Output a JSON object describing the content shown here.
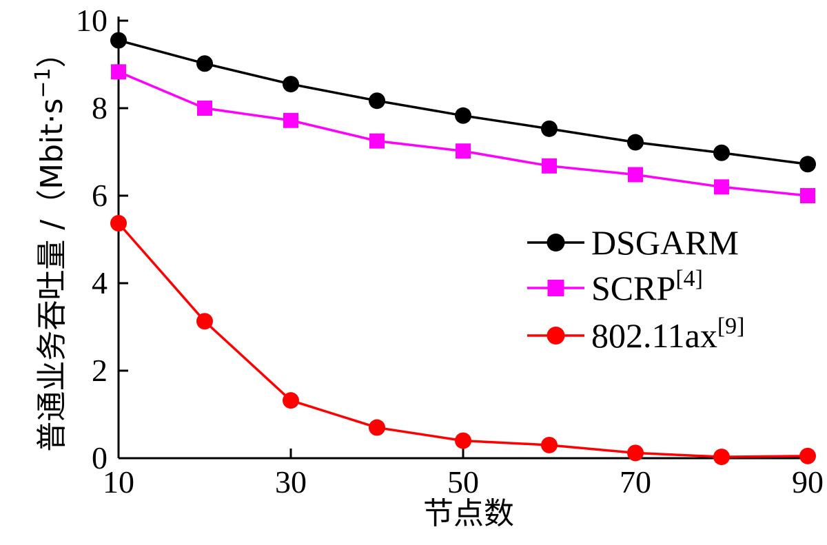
{
  "chart_data": {
    "type": "line",
    "xlabel": "节点数",
    "ylabel": "普通业务吞吐量 /（Mbit·s",
    "ylabel_sup": "−1",
    "ylabel_close": "）",
    "x": [
      10,
      20,
      30,
      40,
      50,
      60,
      70,
      80,
      90
    ],
    "xlim": [
      10,
      90
    ],
    "ylim": [
      0,
      10
    ],
    "xticks": [
      "10",
      "30",
      "50",
      "70",
      "90"
    ],
    "yticks": [
      "0",
      "2",
      "4",
      "6",
      "8",
      "10"
    ],
    "legend_position": "center-right",
    "grid": false,
    "series": [
      {
        "name": "DSGARM",
        "name_sup": "",
        "color": "#000000",
        "marker": "circle",
        "values": [
          9.55,
          9.02,
          8.55,
          8.17,
          7.83,
          7.53,
          7.22,
          6.98,
          6.72
        ]
      },
      {
        "name": "SCRP",
        "name_sup": "[4]",
        "color": "#ff00ff",
        "marker": "square",
        "values": [
          8.83,
          8.0,
          7.72,
          7.25,
          7.02,
          6.68,
          6.48,
          6.2,
          6.0
        ]
      },
      {
        "name": "802.11ax",
        "name_sup": "[9]",
        "color": "#ff0000",
        "marker": "circle",
        "values": [
          5.37,
          3.13,
          1.32,
          0.7,
          0.4,
          0.3,
          0.12,
          0.03,
          0.05
        ]
      }
    ]
  }
}
